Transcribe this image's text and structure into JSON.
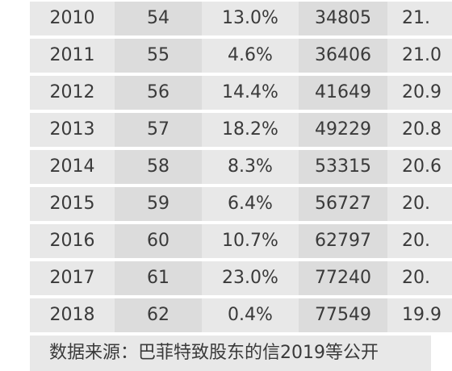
{
  "table": {
    "rows": [
      [
        "2010",
        "54",
        "13.0%",
        "34805",
        "21."
      ],
      [
        "2011",
        "55",
        "4.6%",
        "36406",
        "21.0"
      ],
      [
        "2012",
        "56",
        "14.4%",
        "41649",
        "20.9"
      ],
      [
        "2013",
        "57",
        "18.2%",
        "49229",
        "20.8"
      ],
      [
        "2014",
        "58",
        "8.3%",
        "53315",
        "20.6"
      ],
      [
        "2015",
        "59",
        "6.4%",
        "56727",
        "20."
      ],
      [
        "2016",
        "60",
        "10.7%",
        "62797",
        "20."
      ],
      [
        "2017",
        "61",
        "23.0%",
        "77240",
        "20."
      ],
      [
        "2018",
        "62",
        "0.4%",
        "77549",
        "19.9"
      ]
    ]
  },
  "footer": {
    "source": "数据来源：巴菲特致股东的信2019等公开"
  }
}
